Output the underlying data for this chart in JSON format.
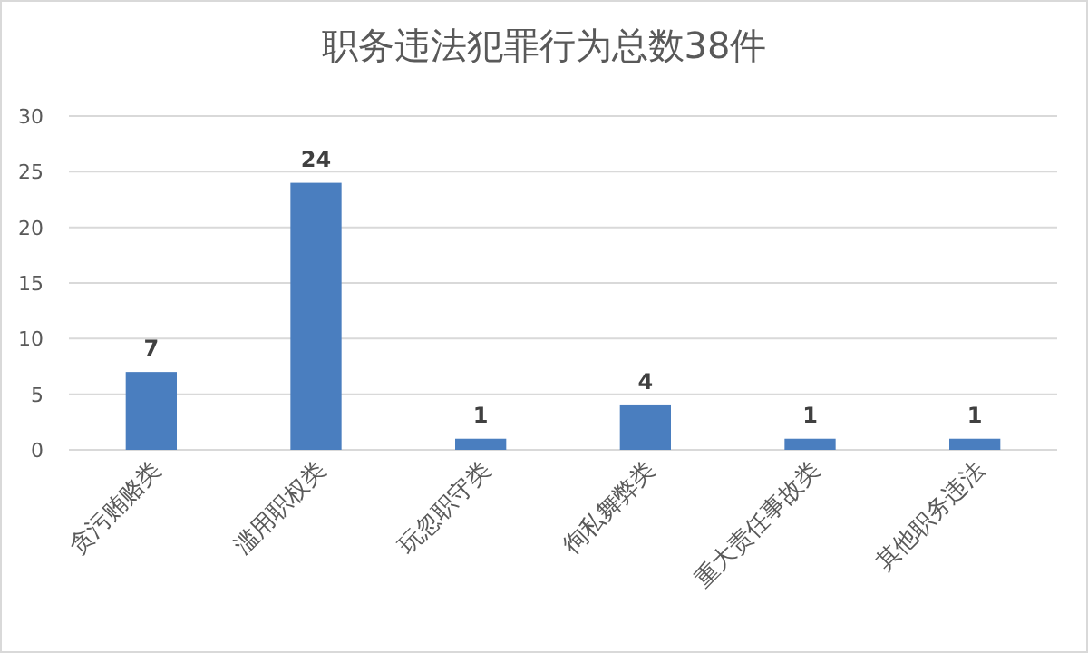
{
  "chart_data": {
    "type": "bar",
    "title": "职务违法犯罪行为总数38件",
    "categories": [
      "贪污贿赂类",
      "滥用职权类",
      "玩忽职守类",
      "徇私舞弊类",
      "重大责任事故类",
      "其他职务违法"
    ],
    "values": [
      7,
      24,
      1,
      4,
      1,
      1
    ],
    "color": "#4a7ebf",
    "ylim": [
      0,
      30
    ],
    "yticks": [
      0,
      5,
      10,
      15,
      20,
      25,
      30
    ],
    "grid": "y",
    "data_labels": true
  }
}
